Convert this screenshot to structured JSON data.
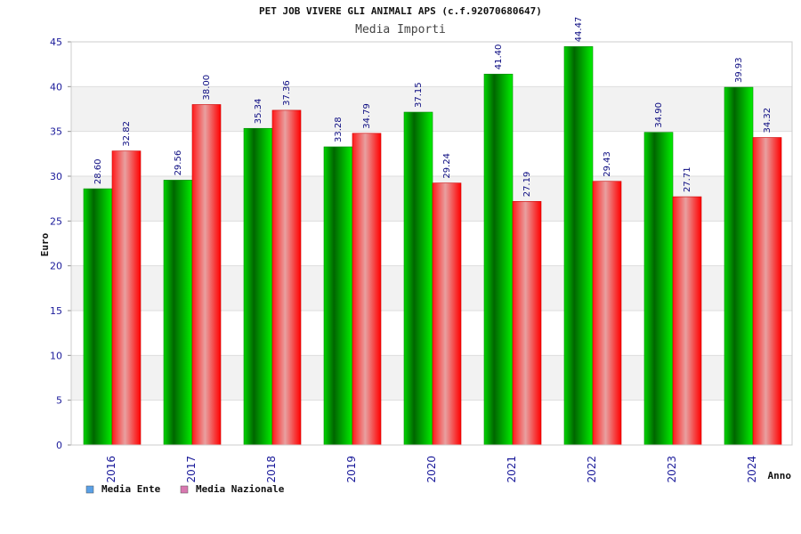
{
  "chart_data": {
    "type": "bar",
    "title": "PET JOB VIVERE GLI ANIMALI APS (c.f.92070680647)",
    "subtitle": "Media Importi",
    "xlabel": "Anno",
    "ylabel": "Euro",
    "ylim": [
      0,
      45
    ],
    "yticks": [
      0,
      5,
      10,
      15,
      20,
      25,
      30,
      35,
      40,
      45
    ],
    "categories": [
      "2016",
      "2017",
      "2018",
      "2019",
      "2020",
      "2021",
      "2022",
      "2023",
      "2024"
    ],
    "series": [
      {
        "name": "Media Ente",
        "color": "#00c000",
        "values": [
          28.6,
          29.56,
          35.34,
          33.28,
          37.15,
          41.4,
          44.47,
          34.9,
          39.93
        ],
        "labels": [
          "28.60",
          "29.56",
          "35.34",
          "33.28",
          "37.15",
          "41.40",
          "44.47",
          "34.90",
          "39.93"
        ]
      },
      {
        "name": "Media Nazionale",
        "color": "#ff0000",
        "values": [
          32.82,
          38.0,
          37.36,
          34.79,
          29.24,
          27.19,
          29.43,
          27.71,
          34.32
        ],
        "labels": [
          "32.82",
          "38.00",
          "37.36",
          "34.79",
          "29.24",
          "27.19",
          "29.43",
          "27.71",
          "34.32"
        ]
      }
    ],
    "legend": {
      "placement": "bottom-left",
      "swatch_colors": [
        "#5aa0e6",
        "#d878b0"
      ]
    },
    "grid": true
  }
}
